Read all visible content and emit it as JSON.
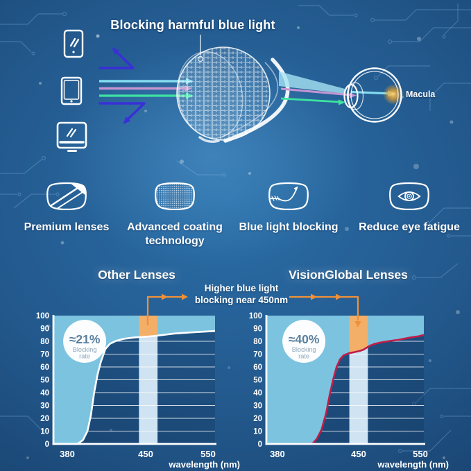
{
  "hero": {
    "title": "Blocking harmful blue light",
    "macula_label": "Macula",
    "device_icons": [
      "smartphone-icon",
      "tablet-icon",
      "monitor-icon"
    ]
  },
  "features": [
    {
      "icon": "premium-lens-icon",
      "label": "Premium lenses",
      "label2": ""
    },
    {
      "icon": "coating-lens-icon",
      "label": "Advanced coating",
      "label2": "technology"
    },
    {
      "icon": "blocking-lens-icon",
      "label": "Blue light blocking",
      "label2": ""
    },
    {
      "icon": "eye-lens-icon",
      "label": "Reduce eye fatigue",
      "label2": ""
    }
  ],
  "annotation": {
    "line1": "Higher blue light",
    "line2": "blocking near 450nm"
  },
  "chart_data": [
    {
      "type": "area",
      "title": "Other Lenses",
      "xlabel": "wavelength (nm)",
      "x_ticks": [
        380,
        450,
        550
      ],
      "y_ticks": [
        0,
        10,
        20,
        30,
        40,
        50,
        60,
        70,
        80,
        90,
        100
      ],
      "ylim": [
        0,
        100
      ],
      "grid": true,
      "band_nm": [
        444,
        469
      ],
      "badge": {
        "value": "≈21%",
        "label_lines": [
          "Blocking",
          "rate"
        ]
      },
      "curve_color": "#ffffff",
      "curve": [
        [
          368,
          0
        ],
        [
          389,
          0
        ],
        [
          394,
          3
        ],
        [
          398,
          10
        ],
        [
          401,
          22
        ],
        [
          404,
          40
        ],
        [
          407,
          54
        ],
        [
          410,
          64
        ],
        [
          414,
          74
        ],
        [
          418,
          78
        ],
        [
          424,
          80.5
        ],
        [
          431,
          82
        ],
        [
          440,
          83
        ],
        [
          452,
          83.6
        ],
        [
          462,
          84
        ],
        [
          470,
          84.5
        ],
        [
          495,
          86
        ],
        [
          525,
          87
        ],
        [
          562,
          88
        ]
      ]
    },
    {
      "type": "area",
      "title": "VisionGlobal Lenses",
      "xlabel": "wavelength (nm)",
      "x_ticks": [
        380,
        450,
        550
      ],
      "y_ticks": [
        0,
        10,
        20,
        30,
        40,
        50,
        60,
        70,
        80,
        90,
        100
      ],
      "ylim": [
        0,
        100
      ],
      "grid": true,
      "band_nm": [
        442,
        465
      ],
      "badge": {
        "value": "≈40%",
        "label_lines": [
          "Blocking",
          "rate"
        ]
      },
      "curve_color": "#c01d49",
      "curve": [
        [
          375,
          0
        ],
        [
          410,
          0
        ],
        [
          414,
          4
        ],
        [
          418,
          11
        ],
        [
          422,
          24
        ],
        [
          425,
          38
        ],
        [
          428,
          50
        ],
        [
          431,
          60
        ],
        [
          434,
          66
        ],
        [
          437,
          69
        ],
        [
          441,
          70.5
        ],
        [
          446,
          71.5
        ],
        [
          452,
          72.5
        ],
        [
          458,
          73.5
        ],
        [
          463,
          75
        ],
        [
          468,
          76.5
        ],
        [
          476,
          78
        ],
        [
          487,
          79.2
        ],
        [
          500,
          80.2
        ],
        [
          515,
          81.2
        ],
        [
          532,
          82.8
        ],
        [
          548,
          84
        ],
        [
          563,
          85
        ]
      ]
    }
  ],
  "colors": {
    "background_deep": "#153457",
    "background_light": "#2a6ea8",
    "sky_fill": "#7cc3e0",
    "pale_band": "#cfe3f2",
    "orange_band": "#f3ae67",
    "annotation_orange": "#f09038",
    "curve_red": "#c01d49",
    "blocked_arrow_indigo": "#3a2fd6",
    "ray_cyan": "#84ddf0",
    "ray_pink": "#c795d2",
    "ray_green": "#3fe3a1",
    "macula_glow": "#f5a623",
    "badge_value": "#5a7f9f",
    "badge_label": "#91a6b8"
  }
}
